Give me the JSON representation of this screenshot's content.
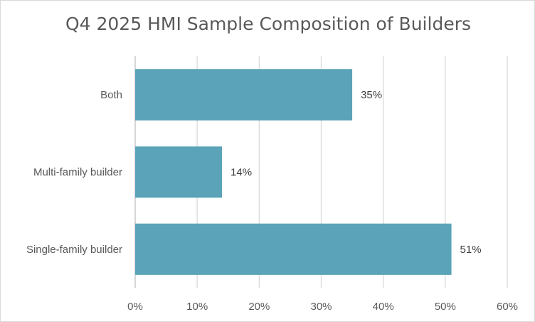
{
  "chart_data": {
    "type": "bar",
    "orientation": "horizontal",
    "title": "Q4 2025 HMI Sample Composition of Builders",
    "categories": [
      "Both",
      "Multi-family builder",
      "Single-family builder"
    ],
    "values": [
      35,
      14,
      51
    ],
    "data_labels": [
      "35%",
      "14%",
      "51%"
    ],
    "xlabel": "",
    "ylabel": "",
    "xlim": [
      0,
      60
    ],
    "x_ticks": [
      0,
      10,
      20,
      30,
      40,
      50,
      60
    ],
    "x_tick_labels": [
      "0%",
      "10%",
      "20%",
      "30%",
      "40%",
      "50%",
      "60%"
    ],
    "grid": true,
    "legend": "none",
    "bar_color": "#5ba3b9"
  }
}
